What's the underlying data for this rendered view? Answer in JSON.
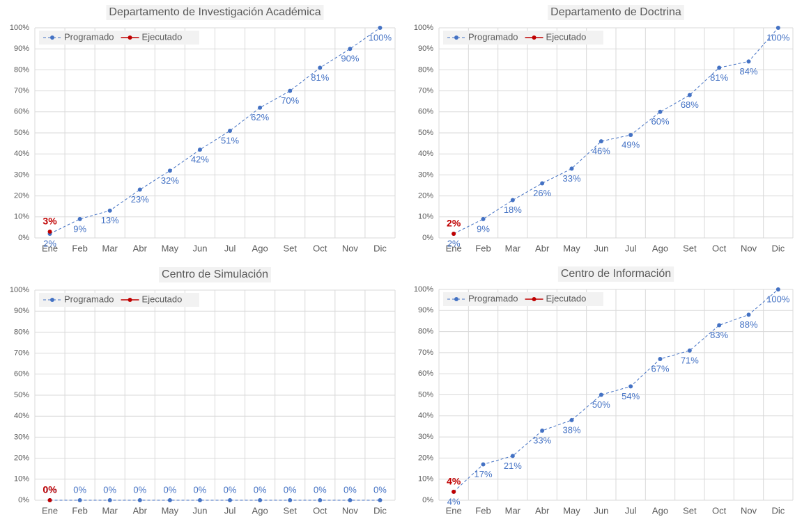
{
  "chart_data": [
    {
      "type": "line",
      "title": "Departamento de Investigación Académica",
      "categories": [
        "Ene",
        "Feb",
        "Mar",
        "Abr",
        "May",
        "Jun",
        "Jul",
        "Ago",
        "Set",
        "Oct",
        "Nov",
        "Dic"
      ],
      "series": [
        {
          "name": "Programado",
          "color": "#4472c4",
          "values": [
            2,
            9,
            13,
            23,
            32,
            42,
            51,
            62,
            70,
            81,
            90,
            100
          ],
          "value_labels": [
            "2%",
            "9%",
            "13%",
            "23%",
            "32%",
            "42%",
            "51%",
            "62%",
            "70%",
            "81%",
            "90%",
            "100%"
          ]
        },
        {
          "name": "Ejecutado",
          "color": "#c00000",
          "values": [
            3,
            null,
            null,
            null,
            null,
            null,
            null,
            null,
            null,
            null,
            null,
            null
          ],
          "value_labels": [
            "3%",
            null,
            null,
            null,
            null,
            null,
            null,
            null,
            null,
            null,
            null,
            null
          ]
        }
      ],
      "ylim": [
        0,
        100
      ],
      "yticks": [
        {
          "value": 0,
          "label": "0%"
        },
        {
          "value": 10,
          "label": "10%"
        },
        {
          "value": 20,
          "label": "20%"
        },
        {
          "value": 30,
          "label": "30%"
        },
        {
          "value": 40,
          "label": "40%"
        },
        {
          "value": 50,
          "label": "50%"
        },
        {
          "value": 60,
          "label": "60%"
        },
        {
          "value": 70,
          "label": "70%"
        },
        {
          "value": 80,
          "label": "80%"
        },
        {
          "value": 90,
          "label": "90%"
        },
        {
          "value": 100,
          "label": "100%"
        }
      ],
      "grid": true,
      "legend": "upper left"
    },
    {
      "type": "line",
      "title": "Departamento de Doctrina",
      "categories": [
        "Ene",
        "Feb",
        "Mar",
        "Abr",
        "May",
        "Jun",
        "Jul",
        "Ago",
        "Set",
        "Oct",
        "Nov",
        "Dic"
      ],
      "series": [
        {
          "name": "Programado",
          "color": "#4472c4",
          "values": [
            2,
            9,
            18,
            26,
            33,
            46,
            49,
            60,
            68,
            81,
            84,
            100
          ],
          "value_labels": [
            "2%",
            "9%",
            "18%",
            "26%",
            "33%",
            "46%",
            "49%",
            "60%",
            "68%",
            "81%",
            "84%",
            "100%"
          ]
        },
        {
          "name": "Ejecutado",
          "color": "#c00000",
          "values": [
            2,
            null,
            null,
            null,
            null,
            null,
            null,
            null,
            null,
            null,
            null,
            null
          ],
          "value_labels": [
            "2%",
            null,
            null,
            null,
            null,
            null,
            null,
            null,
            null,
            null,
            null,
            null
          ]
        }
      ],
      "ylim": [
        0,
        100
      ],
      "yticks": [
        {
          "value": 0,
          "label": "0%"
        },
        {
          "value": 10,
          "label": "10%"
        },
        {
          "value": 20,
          "label": "20%"
        },
        {
          "value": 30,
          "label": "30%"
        },
        {
          "value": 40,
          "label": "40%"
        },
        {
          "value": 50,
          "label": "50%"
        },
        {
          "value": 60,
          "label": "60%"
        },
        {
          "value": 70,
          "label": "70%"
        },
        {
          "value": 80,
          "label": "80%"
        },
        {
          "value": 90,
          "label": "90%"
        },
        {
          "value": 100,
          "label": "100%"
        }
      ],
      "grid": true,
      "legend": "upper left"
    },
    {
      "type": "line",
      "title": "Centro de Simulación",
      "categories": [
        "Ene",
        "Feb",
        "Mar",
        "Abr",
        "May",
        "Jun",
        "Jul",
        "Ago",
        "Set",
        "Oct",
        "Nov",
        "Dic"
      ],
      "series": [
        {
          "name": "Programado",
          "color": "#4472c4",
          "values": [
            0,
            0,
            0,
            0,
            0,
            0,
            0,
            0,
            0,
            0,
            0,
            0
          ],
          "value_labels": [
            "0%",
            "0%",
            "0%",
            "0%",
            "0%",
            "0%",
            "0%",
            "0%",
            "0%",
            "0%",
            "0%",
            "0%"
          ]
        },
        {
          "name": "Ejecutado",
          "color": "#c00000",
          "values": [
            0,
            null,
            null,
            null,
            null,
            null,
            null,
            null,
            null,
            null,
            null,
            null
          ],
          "value_labels": [
            "0%",
            null,
            null,
            null,
            null,
            null,
            null,
            null,
            null,
            null,
            null,
            null
          ]
        }
      ],
      "ylim": [
        0,
        100
      ],
      "yticks": [
        {
          "value": 0,
          "label": "0%"
        },
        {
          "value": 10,
          "label": "10%"
        },
        {
          "value": 20,
          "label": "20%"
        },
        {
          "value": 30,
          "label": "30%"
        },
        {
          "value": 40,
          "label": "40%"
        },
        {
          "value": 50,
          "label": "50%"
        },
        {
          "value": 60,
          "label": "60%"
        },
        {
          "value": 70,
          "label": "70%"
        },
        {
          "value": 80,
          "label": "80%"
        },
        {
          "value": 90,
          "label": "90%"
        },
        {
          "value": 100,
          "label": "100%"
        }
      ],
      "grid": true,
      "legend": "upper left"
    },
    {
      "type": "line",
      "title": "Centro de Información",
      "categories": [
        "Ene",
        "Feb",
        "Mar",
        "Abr",
        "May",
        "Jun",
        "Jul",
        "Ago",
        "Set",
        "Oct",
        "Nov",
        "Dic"
      ],
      "series": [
        {
          "name": "Programado",
          "color": "#4472c4",
          "values": [
            4,
            17,
            21,
            33,
            38,
            50,
            54,
            67,
            71,
            83,
            88,
            100
          ],
          "value_labels": [
            "4%",
            "17%",
            "21%",
            "33%",
            "38%",
            "50%",
            "54%",
            "67%",
            "71%",
            "83%",
            "88%",
            "100%"
          ]
        },
        {
          "name": "Ejecutado",
          "color": "#c00000",
          "values": [
            4,
            null,
            null,
            null,
            null,
            null,
            null,
            null,
            null,
            null,
            null,
            null
          ],
          "value_labels": [
            "4%",
            null,
            null,
            null,
            null,
            null,
            null,
            null,
            null,
            null,
            null,
            null
          ]
        }
      ],
      "ylim": [
        0,
        100
      ],
      "yticks": [
        {
          "value": 0,
          "label": "0%"
        },
        {
          "value": 10,
          "label": "10%"
        },
        {
          "value": 20,
          "label": "20%"
        },
        {
          "value": 30,
          "label": "30%"
        },
        {
          "value": 40,
          "label": "40%"
        },
        {
          "value": 50,
          "label": "50%"
        },
        {
          "value": 60,
          "label": "60%"
        },
        {
          "value": 70,
          "label": "70%"
        },
        {
          "value": 80,
          "label": "80%"
        },
        {
          "value": 90,
          "label": "90%"
        },
        {
          "value": 100,
          "label": "100%"
        }
      ],
      "grid": true,
      "legend": "upper left"
    }
  ]
}
